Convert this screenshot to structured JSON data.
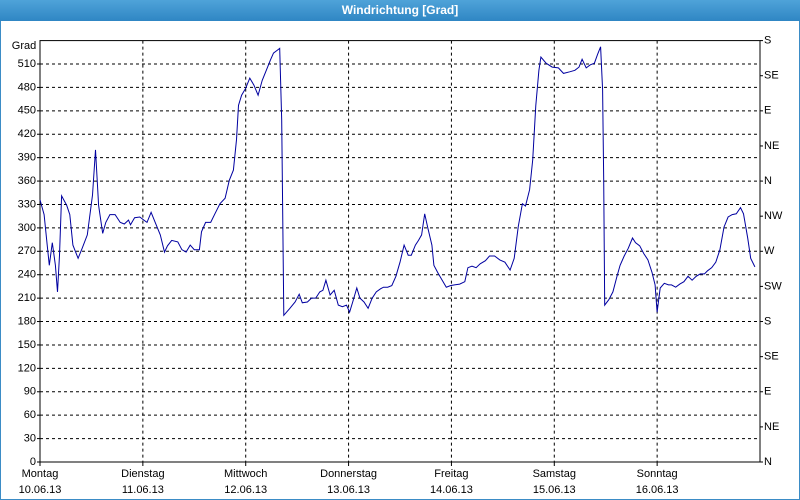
{
  "chart_data": {
    "type": "line",
    "title": "Windrichtung [Grad]",
    "y_label": "Grad",
    "xlim": [
      0,
      7
    ],
    "xticks": [
      {
        "value": 0,
        "label": [
          "Montag",
          "10.06.13"
        ]
      },
      {
        "value": 1,
        "label": [
          "Dienstag",
          "11.06.13"
        ]
      },
      {
        "value": 2,
        "label": [
          "Mittwoch",
          "12.06.13"
        ]
      },
      {
        "value": 3,
        "label": [
          "Donnerstag",
          "13.06.13"
        ]
      },
      {
        "value": 4,
        "label": [
          "Freitag",
          "14.06.13"
        ]
      },
      {
        "value": 5,
        "label": [
          "Samstag",
          "15.06.13"
        ]
      },
      {
        "value": 6,
        "label": [
          "Sonntag",
          "16.06.13"
        ]
      }
    ],
    "ylim": [
      0,
      540
    ],
    "yticks": [
      0,
      30,
      60,
      90,
      120,
      150,
      180,
      210,
      240,
      270,
      300,
      330,
      360,
      390,
      420,
      450,
      480,
      510
    ],
    "y2lim": [
      0,
      540
    ],
    "y2ticks": [
      {
        "value": 0,
        "label": "N"
      },
      {
        "value": 45,
        "label": "NE"
      },
      {
        "value": 90,
        "label": "E"
      },
      {
        "value": 135,
        "label": "SE"
      },
      {
        "value": 180,
        "label": "S"
      },
      {
        "value": 225,
        "label": "SW"
      },
      {
        "value": 270,
        "label": "W"
      },
      {
        "value": 315,
        "label": "NW"
      },
      {
        "value": 360,
        "label": "N"
      },
      {
        "value": 405,
        "label": "NE"
      },
      {
        "value": 450,
        "label": "E"
      },
      {
        "value": 495,
        "label": "SE"
      },
      {
        "value": 540,
        "label": "S"
      }
    ],
    "grid": true,
    "series": [
      {
        "color": "#0000a0",
        "x": [
          0,
          0.04,
          0.07,
          0.09,
          0.12,
          0.15,
          0.17,
          0.19,
          0.21,
          0.26,
          0.29,
          0.32,
          0.37,
          0.41,
          0.46,
          0.51,
          0.54,
          0.57,
          0.61,
          0.64,
          0.68,
          0.73,
          0.78,
          0.82,
          0.86,
          0.88,
          0.92,
          0.97,
          1.01,
          1.04,
          1.08,
          1.12,
          1.17,
          1.21,
          1.24,
          1.28,
          1.34,
          1.38,
          1.42,
          1.46,
          1.5,
          1.55,
          1.57,
          1.61,
          1.66,
          1.7,
          1.75,
          1.8,
          1.84,
          1.88,
          1.91,
          1.93,
          1.96,
          2,
          2.04,
          2.08,
          2.12,
          2.16,
          2.2,
          2.24,
          2.27,
          2.31,
          2.33,
          2.35,
          2.37,
          2.43,
          2.48,
          2.52,
          2.55,
          2.6,
          2.64,
          2.68,
          2.72,
          2.75,
          2.78,
          2.82,
          2.86,
          2.9,
          2.94,
          2.98,
          3.01,
          3.04,
          3.08,
          3.11,
          3.15,
          3.19,
          3.23,
          3.27,
          3.31,
          3.34,
          3.38,
          3.42,
          3.46,
          3.5,
          3.54,
          3.58,
          3.61,
          3.65,
          3.68,
          3.71,
          3.74,
          3.77,
          3.81,
          3.83,
          3.87,
          3.91,
          3.95,
          3.99,
          4.03,
          4.08,
          4.13,
          4.16,
          4.2,
          4.24,
          4.28,
          4.33,
          4.37,
          4.42,
          4.47,
          4.52,
          4.57,
          4.61,
          4.65,
          4.69,
          4.72,
          4.76,
          4.79,
          4.82,
          4.85,
          4.87,
          4.92,
          4.98,
          5.04,
          5.09,
          5.15,
          5.2,
          5.24,
          5.27,
          5.31,
          5.35,
          5.39,
          5.42,
          5.45,
          5.47,
          5.48,
          5.49,
          5.53,
          5.57,
          5.61,
          5.64,
          5.68,
          5.72,
          5.76,
          5.79,
          5.83,
          5.87,
          5.91,
          5.95,
          5.98,
          6,
          6.03,
          6.07,
          6.11,
          6.14,
          6.18,
          6.22,
          6.26,
          6.3,
          6.34,
          6.38,
          6.42,
          6.46,
          6.49,
          6.53,
          6.57,
          6.61,
          6.65,
          6.69,
          6.73,
          6.77,
          6.81,
          6.84,
          6.88,
          6.91,
          6.95
        ],
        "values": [
          336,
          317,
          278,
          252,
          281,
          252,
          218,
          265,
          341,
          329,
          317,
          278,
          261,
          274,
          291,
          342,
          400,
          329,
          293,
          307,
          317,
          317,
          307,
          305,
          310,
          304,
          313,
          314,
          310,
          307,
          320,
          307,
          291,
          269,
          277,
          284,
          282,
          272,
          269,
          278,
          272,
          272,
          295,
          307,
          307,
          318,
          331,
          338,
          361,
          374,
          413,
          457,
          470,
          479,
          492,
          483,
          470,
          489,
          502,
          515,
          524,
          528,
          530,
          438,
          188,
          197,
          205,
          215,
          204,
          205,
          210,
          210,
          218,
          220,
          233,
          214,
          220,
          201,
          199,
          201,
          192,
          205,
          223,
          210,
          205,
          197,
          210,
          218,
          222,
          224,
          224,
          226,
          238,
          256,
          278,
          265,
          265,
          278,
          284,
          291,
          318,
          300,
          278,
          252,
          242,
          233,
          224,
          226,
          227,
          228,
          231,
          249,
          251,
          249,
          254,
          258,
          264,
          264,
          259,
          256,
          246,
          261,
          302,
          331,
          328,
          349,
          387,
          457,
          502,
          519,
          511,
          506,
          505,
          498,
          500,
          502,
          506,
          516,
          505,
          509,
          511,
          522,
          532,
          477,
          361,
          201,
          208,
          218,
          238,
          252,
          264,
          274,
          287,
          281,
          277,
          267,
          259,
          243,
          227,
          192,
          223,
          229,
          227,
          227,
          224,
          228,
          231,
          238,
          233,
          238,
          241,
          241,
          245,
          249,
          256,
          272,
          301,
          314,
          317,
          318,
          326,
          318,
          287,
          261,
          250
        ]
      }
    ]
  }
}
